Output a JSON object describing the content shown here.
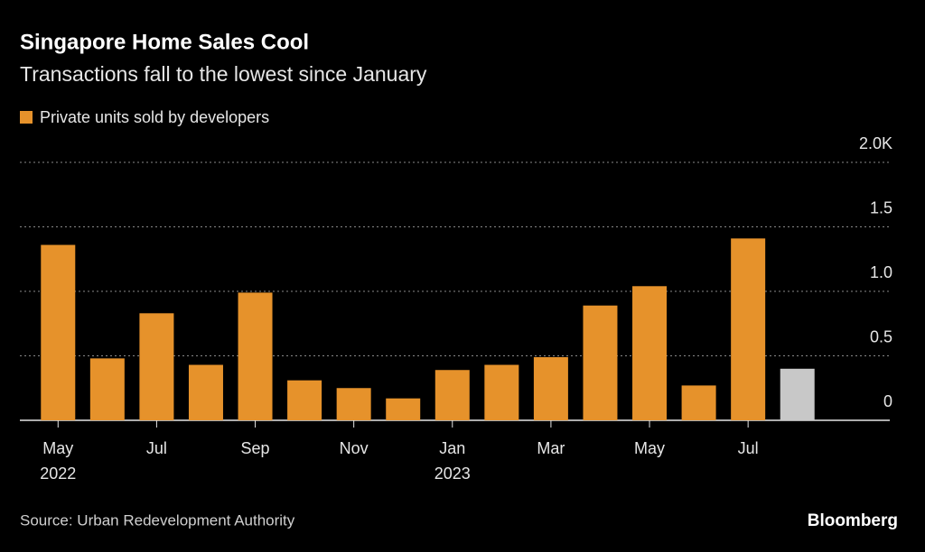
{
  "chart_data": {
    "type": "bar",
    "title": "Singapore Home Sales Cool",
    "subtitle": "Transactions fall to the lowest since January",
    "categories": [
      "May",
      null,
      "Jul",
      null,
      "Sep",
      null,
      "Nov",
      null,
      "Jan",
      null,
      "Mar",
      null,
      "May",
      null,
      "Jul",
      null
    ],
    "category_years": [
      "2022",
      null,
      null,
      null,
      null,
      null,
      null,
      null,
      "2023",
      null,
      null,
      null,
      null,
      null,
      null,
      null
    ],
    "series": [
      {
        "name": "Private units sold by developers",
        "color": "#e6922b",
        "values": [
          1.36,
          0.48,
          0.83,
          0.43,
          0.99,
          0.31,
          0.25,
          0.17,
          0.39,
          0.43,
          0.49,
          0.89,
          1.04,
          0.27,
          1.41,
          0.4
        ],
        "bar_colors": [
          "#e6922b",
          "#e6922b",
          "#e6922b",
          "#e6922b",
          "#e6922b",
          "#e6922b",
          "#e6922b",
          "#e6922b",
          "#e6922b",
          "#e6922b",
          "#e6922b",
          "#e6922b",
          "#e6922b",
          "#e6922b",
          "#e6922b",
          "#c8c8c8"
        ]
      }
    ],
    "ylim": [
      0,
      2
    ],
    "yticks": [
      0,
      0.5,
      {
        "value": 1,
        "label": "1.0"
      },
      1.5,
      {
        "value": 2,
        "label": "2.0K"
      }
    ],
    "grid": true,
    "source": "Source: Urban Redevelopment Authority",
    "brand": "Bloomberg"
  }
}
